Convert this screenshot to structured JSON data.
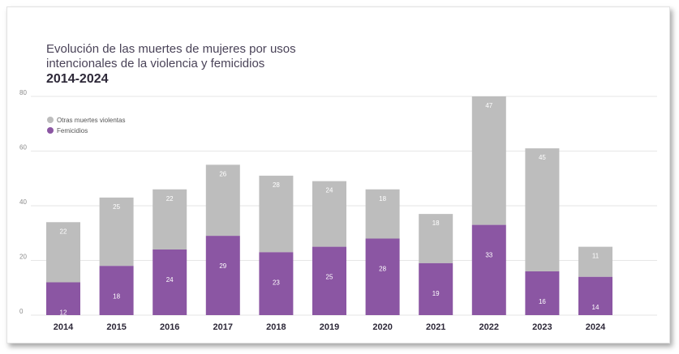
{
  "title_line1": "Evolución de las muertes de mujeres por usos",
  "title_line2": "intencionales de la violencia y femicidios",
  "title_years": "2014-2024",
  "colors": {
    "femicidios": "#8b56a3",
    "otras": "#bdbdbd",
    "grid": "#e6e6e6",
    "axis_text": "#8a8a8a",
    "label_dark": "#2d2838"
  },
  "chart_data": {
    "type": "bar",
    "stacked": true,
    "title": "Evolución de las muertes de mujeres por usos intencionales de la violencia y femicidios 2014-2024",
    "categories": [
      "2014",
      "2015",
      "2016",
      "2017",
      "2018",
      "2019",
      "2020",
      "2021",
      "2022",
      "2023",
      "2024"
    ],
    "series": [
      {
        "name": "Femicidios",
        "values": [
          12,
          18,
          24,
          29,
          23,
          25,
          28,
          19,
          33,
          16,
          14
        ]
      },
      {
        "name": "Otras muertes violentas",
        "values": [
          22,
          25,
          22,
          26,
          28,
          24,
          18,
          18,
          47,
          45,
          11
        ]
      }
    ],
    "yticks": [
      0,
      20,
      40,
      60,
      80
    ],
    "ylim": [
      0,
      80
    ],
    "legend": [
      "Otras muertes violentas",
      "Femicidios"
    ],
    "legend_position": "top-left",
    "grid": true
  }
}
